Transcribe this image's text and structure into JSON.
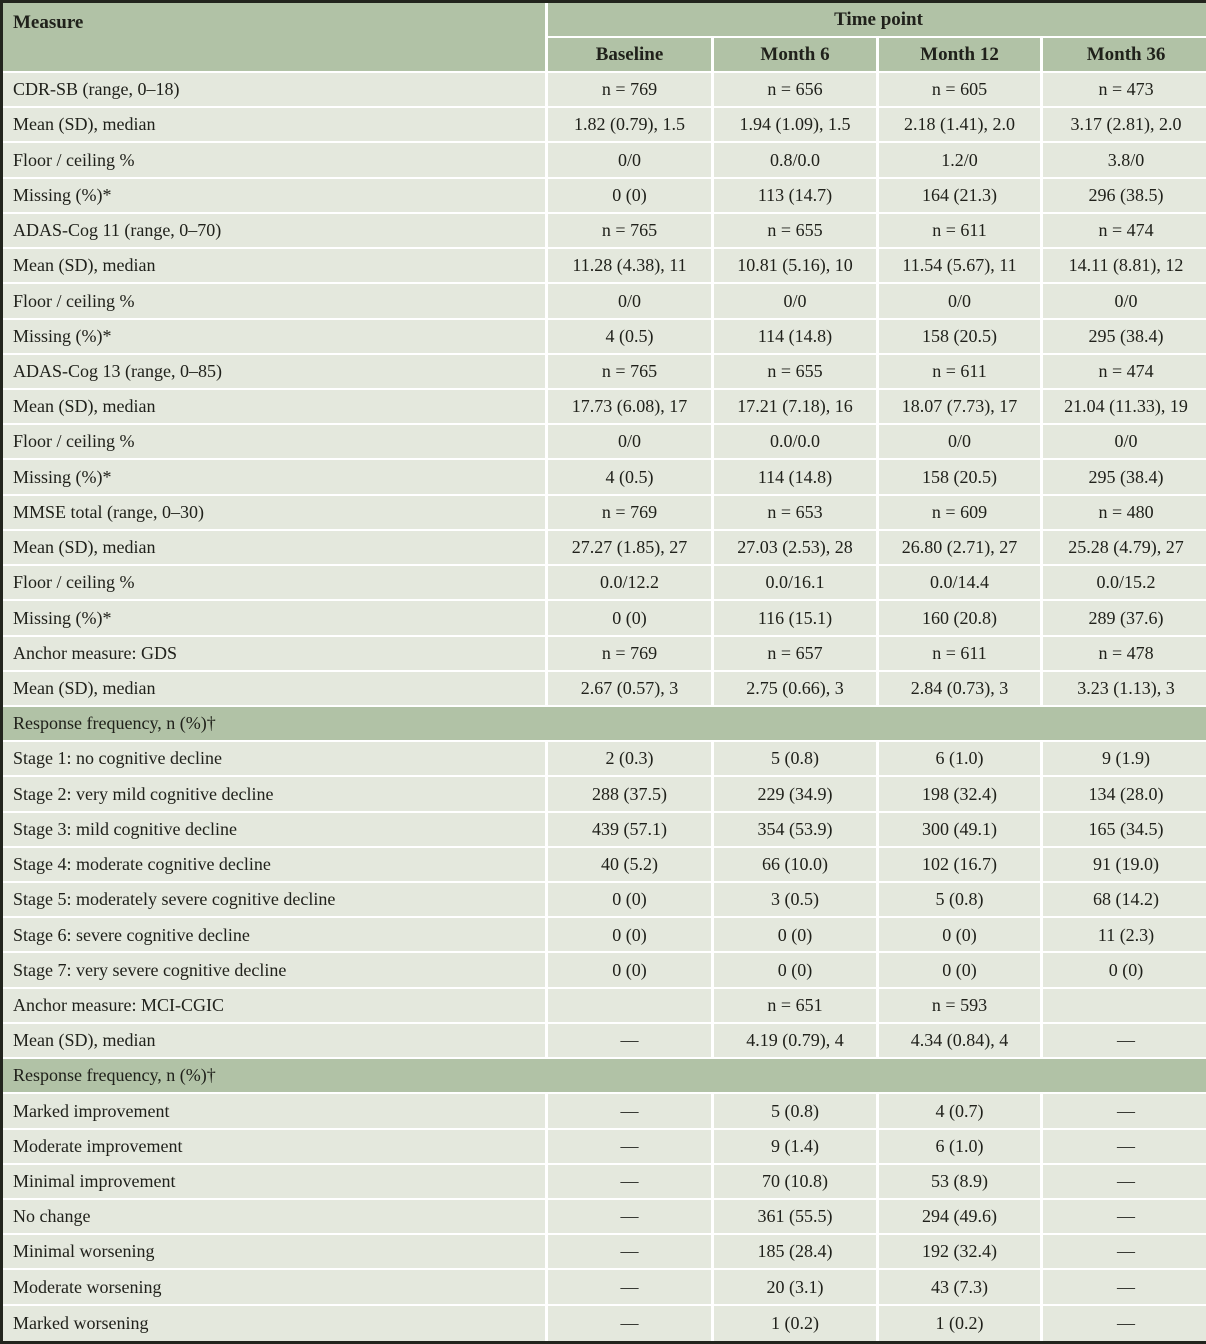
{
  "colors": {
    "header_green": "#b1c2a6",
    "section_green": "#b1c2a6",
    "row_background": "#e4e8dd",
    "grid_line": "#ffffff",
    "outer_border": "#22241d",
    "text": "#20211b"
  },
  "table": {
    "measure_header": "Measure",
    "timepoint_header": "Time point",
    "columns": [
      "Baseline",
      "Month 6",
      "Month 12",
      "Month 36"
    ],
    "rows": [
      {
        "type": "data",
        "label": "CDR-SB (range, 0–18)",
        "values": [
          "n = 769",
          "n = 656",
          "n = 605",
          "n = 473"
        ]
      },
      {
        "type": "data",
        "label": "Mean (SD), median",
        "values": [
          "1.82 (0.79), 1.5",
          "1.94 (1.09), 1.5",
          "2.18 (1.41), 2.0",
          "3.17 (2.81), 2.0"
        ]
      },
      {
        "type": "data",
        "label": "Floor / ceiling %",
        "values": [
          "0/0",
          "0.8/0.0",
          "1.2/0",
          "3.8/0"
        ]
      },
      {
        "type": "data",
        "label": "Missing (%)*",
        "values": [
          "0 (0)",
          "113 (14.7)",
          "164 (21.3)",
          "296 (38.5)"
        ]
      },
      {
        "type": "data",
        "label": "ADAS-Cog 11 (range, 0–70)",
        "values": [
          "n = 765",
          "n = 655",
          "n = 611",
          "n = 474"
        ]
      },
      {
        "type": "data",
        "label": "Mean (SD), median",
        "values": [
          "11.28 (4.38), 11",
          "10.81 (5.16), 10",
          "11.54 (5.67), 11",
          "14.11 (8.81), 12"
        ]
      },
      {
        "type": "data",
        "label": "Floor / ceiling %",
        "values": [
          "0/0",
          "0/0",
          "0/0",
          "0/0"
        ]
      },
      {
        "type": "data",
        "label": "Missing (%)*",
        "values": [
          "4 (0.5)",
          "114 (14.8)",
          "158 (20.5)",
          "295 (38.4)"
        ]
      },
      {
        "type": "data",
        "label": "ADAS-Cog 13 (range, 0–85)",
        "values": [
          "n = 765",
          "n = 655",
          "n = 611",
          "n = 474"
        ]
      },
      {
        "type": "data",
        "label": "Mean (SD), median",
        "values": [
          "17.73 (6.08), 17",
          "17.21 (7.18), 16",
          "18.07 (7.73), 17",
          "21.04 (11.33), 19"
        ]
      },
      {
        "type": "data",
        "label": "Floor / ceiling %",
        "values": [
          "0/0",
          "0.0/0.0",
          "0/0",
          "0/0"
        ]
      },
      {
        "type": "data",
        "label": "Missing (%)*",
        "values": [
          "4 (0.5)",
          "114 (14.8)",
          "158 (20.5)",
          "295 (38.4)"
        ]
      },
      {
        "type": "data",
        "label": "MMSE total (range, 0–30)",
        "values": [
          "n = 769",
          "n = 653",
          "n = 609",
          "n = 480"
        ]
      },
      {
        "type": "data",
        "label": "Mean (SD), median",
        "values": [
          "27.27 (1.85), 27",
          "27.03 (2.53), 28",
          "26.80 (2.71), 27",
          "25.28 (4.79), 27"
        ]
      },
      {
        "type": "data",
        "label": "Floor / ceiling %",
        "values": [
          "0.0/12.2",
          "0.0/16.1",
          "0.0/14.4",
          "0.0/15.2"
        ]
      },
      {
        "type": "data",
        "label": "Missing (%)*",
        "values": [
          "0 (0)",
          "116 (15.1)",
          "160 (20.8)",
          "289 (37.6)"
        ]
      },
      {
        "type": "data",
        "label": "Anchor measure: GDS",
        "values": [
          "n = 769",
          "n = 657",
          "n = 611",
          "n = 478"
        ]
      },
      {
        "type": "data",
        "label": "Mean (SD), median",
        "values": [
          "2.67 (0.57), 3",
          "2.75 (0.66), 3",
          "2.84 (0.73), 3",
          "3.23 (1.13), 3"
        ]
      },
      {
        "type": "section",
        "label": "Response frequency, n (%)†"
      },
      {
        "type": "data",
        "label": "Stage 1: no cognitive decline",
        "values": [
          "2 (0.3)",
          "5 (0.8)",
          "6 (1.0)",
          "9 (1.9)"
        ]
      },
      {
        "type": "data",
        "label": "Stage 2: very mild cognitive decline",
        "values": [
          "288 (37.5)",
          "229 (34.9)",
          "198 (32.4)",
          "134 (28.0)"
        ]
      },
      {
        "type": "data",
        "label": "Stage 3: mild cognitive decline",
        "values": [
          "439 (57.1)",
          "354 (53.9)",
          "300 (49.1)",
          "165 (34.5)"
        ]
      },
      {
        "type": "data",
        "label": "Stage 4: moderate cognitive decline",
        "values": [
          "40 (5.2)",
          "66 (10.0)",
          "102 (16.7)",
          "91 (19.0)"
        ]
      },
      {
        "type": "data",
        "label": "Stage 5: moderately severe cognitive decline",
        "values": [
          "0 (0)",
          "3 (0.5)",
          "5 (0.8)",
          "68 (14.2)"
        ]
      },
      {
        "type": "data",
        "label": "Stage 6: severe cognitive decline",
        "values": [
          "0 (0)",
          "0 (0)",
          "0 (0)",
          "11 (2.3)"
        ]
      },
      {
        "type": "data",
        "label": "Stage 7: very severe cognitive decline",
        "values": [
          "0 (0)",
          "0 (0)",
          "0 (0)",
          "0 (0)"
        ]
      },
      {
        "type": "data",
        "label": "Anchor measure: MCI-CGIC",
        "values": [
          "",
          "n = 651",
          "n = 593",
          ""
        ]
      },
      {
        "type": "data",
        "label": "Mean (SD), median",
        "values": [
          "—",
          "4.19 (0.79), 4",
          "4.34 (0.84), 4",
          "—"
        ]
      },
      {
        "type": "section",
        "label": "Response frequency, n (%)†"
      },
      {
        "type": "data",
        "label": "Marked improvement",
        "values": [
          "—",
          "5 (0.8)",
          "4 (0.7)",
          "—"
        ]
      },
      {
        "type": "data",
        "label": "Moderate improvement",
        "values": [
          "—",
          "9 (1.4)",
          "6 (1.0)",
          "—"
        ]
      },
      {
        "type": "data",
        "label": "Minimal improvement",
        "values": [
          "—",
          "70 (10.8)",
          "53 (8.9)",
          "—"
        ]
      },
      {
        "type": "data",
        "label": "No change",
        "values": [
          "—",
          "361 (55.5)",
          "294 (49.6)",
          "—"
        ]
      },
      {
        "type": "data",
        "label": "Minimal worsening",
        "values": [
          "—",
          "185 (28.4)",
          "192 (32.4)",
          "—"
        ]
      },
      {
        "type": "data",
        "label": "Moderate worsening",
        "values": [
          "—",
          "20 (3.1)",
          "43 (7.3)",
          "—"
        ]
      },
      {
        "type": "data",
        "label": "Marked worsening",
        "values": [
          "—",
          "1 (0.2)",
          "1 (0.2)",
          "—"
        ]
      }
    ]
  }
}
